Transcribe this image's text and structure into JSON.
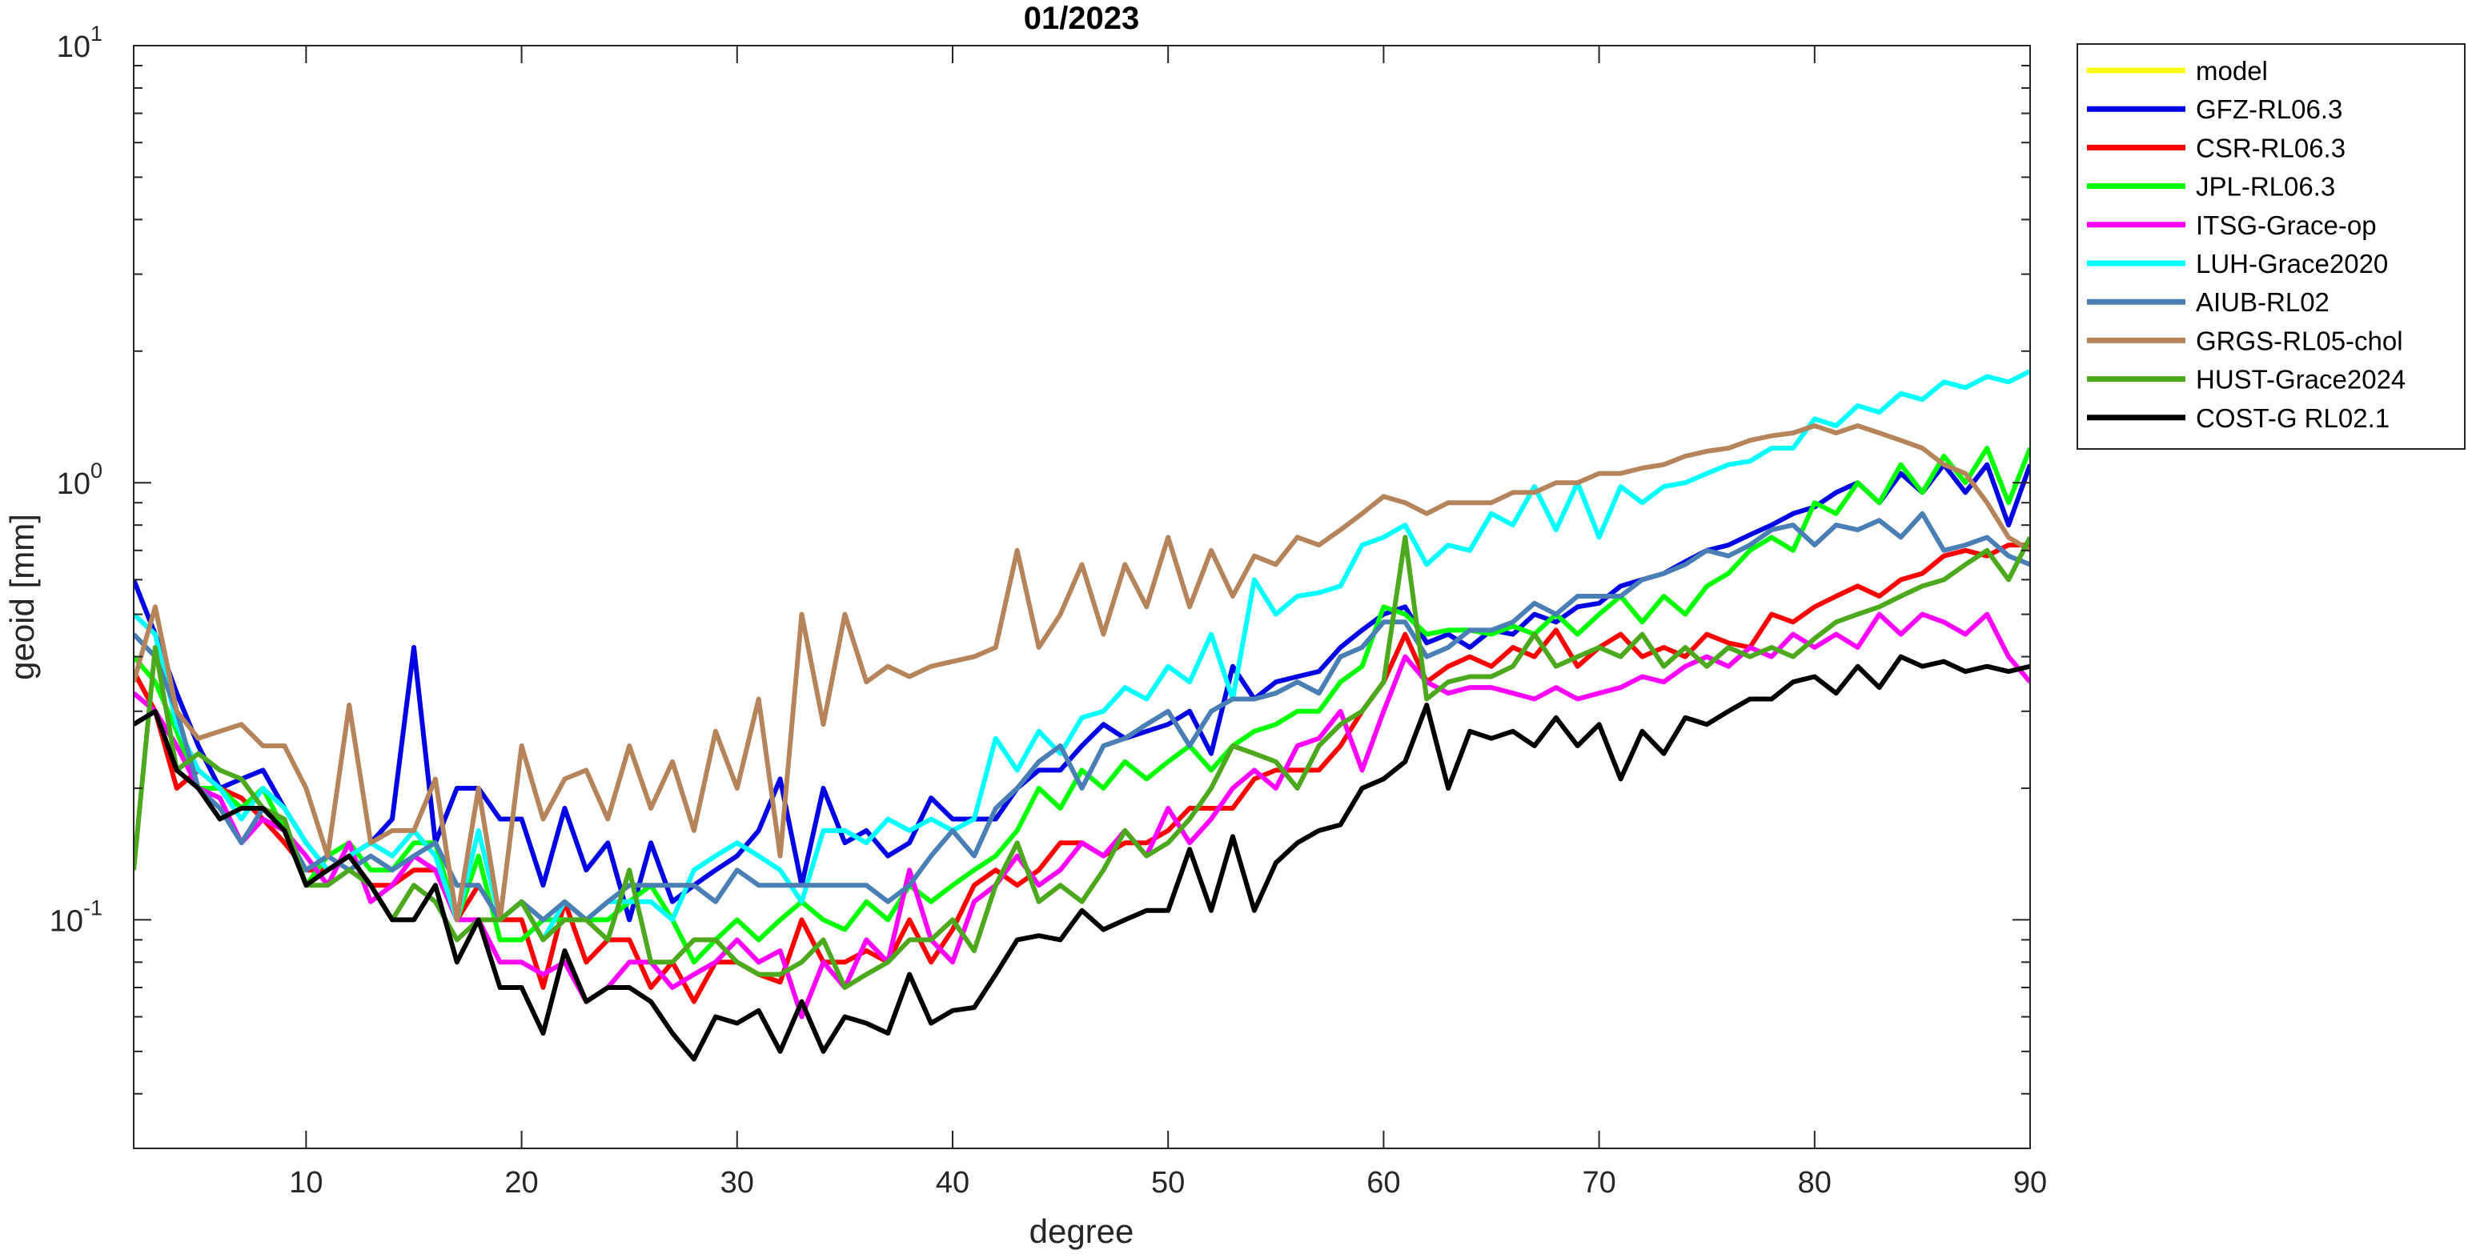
{
  "chart_data": {
    "type": "line",
    "title": "01/2023",
    "xlabel": "degree",
    "ylabel": "geoid [mm]",
    "x": [
      2,
      3,
      4,
      5,
      6,
      7,
      8,
      9,
      10,
      11,
      12,
      13,
      14,
      15,
      16,
      17,
      18,
      19,
      20,
      21,
      22,
      23,
      24,
      25,
      26,
      27,
      28,
      29,
      30,
      31,
      32,
      33,
      34,
      35,
      36,
      37,
      38,
      39,
      40,
      41,
      42,
      43,
      44,
      45,
      46,
      47,
      48,
      49,
      50,
      51,
      52,
      53,
      54,
      55,
      56,
      57,
      58,
      59,
      60,
      61,
      62,
      63,
      64,
      65,
      66,
      67,
      68,
      69,
      70,
      71,
      72,
      73,
      74,
      75,
      76,
      77,
      78,
      79,
      80,
      81,
      82,
      83,
      84,
      85,
      86,
      87,
      88,
      89,
      90
    ],
    "xlim": [
      2,
      90
    ],
    "xticks": [
      10,
      20,
      30,
      40,
      50,
      60,
      70,
      80,
      90
    ],
    "ylim": [
      0.03,
      10
    ],
    "log_y": true,
    "yticks": [
      {
        "value": 0.1,
        "label": "10",
        "exponent": "-1"
      },
      {
        "value": 1,
        "label": "10",
        "exponent": "0"
      },
      {
        "value": 10,
        "label": "10",
        "exponent": "1"
      }
    ],
    "yminorticks": [
      0.03,
      0.04,
      0.05,
      0.06,
      0.07,
      0.08,
      0.09,
      0.2,
      0.3,
      0.4,
      0.5,
      0.6,
      0.7,
      0.8,
      0.9,
      2,
      3,
      4,
      5,
      6,
      7,
      8,
      9
    ],
    "grid": false,
    "legend": "outside-right",
    "series": [
      {
        "name": "model",
        "color": "#ffff00",
        "values": [
          null,
          null,
          null,
          null,
          null,
          null,
          null,
          null,
          null,
          null,
          null,
          null,
          null,
          null,
          null,
          null,
          null,
          null,
          null,
          null,
          null,
          null,
          null,
          null,
          null,
          null,
          null,
          null,
          null,
          null,
          null,
          null,
          null,
          null,
          null,
          null,
          null,
          null,
          null,
          null,
          null,
          null,
          null,
          null,
          null,
          null,
          null,
          null,
          null,
          null,
          null,
          null,
          null,
          null,
          null,
          null,
          null,
          null,
          null,
          null,
          null,
          null,
          null,
          null,
          null,
          null,
          null,
          null,
          null,
          null,
          null,
          null,
          null,
          null,
          null,
          null,
          null,
          null,
          null,
          null,
          null,
          null,
          null,
          null,
          null,
          null,
          null,
          null,
          null
        ]
      },
      {
        "name": "GFZ-RL06.3",
        "color": "#0000e6",
        "values": [
          0.6,
          0.45,
          0.33,
          0.25,
          0.2,
          0.21,
          0.22,
          0.18,
          0.15,
          0.13,
          0.14,
          0.15,
          0.17,
          0.42,
          0.15,
          0.2,
          0.2,
          0.17,
          0.17,
          0.12,
          0.18,
          0.13,
          0.15,
          0.1,
          0.15,
          0.11,
          0.12,
          0.13,
          0.14,
          0.16,
          0.21,
          0.12,
          0.2,
          0.15,
          0.16,
          0.14,
          0.15,
          0.19,
          0.17,
          0.17,
          0.17,
          0.2,
          0.22,
          0.22,
          0.25,
          0.28,
          0.26,
          0.27,
          0.28,
          0.3,
          0.24,
          0.38,
          0.32,
          0.35,
          0.36,
          0.37,
          0.42,
          0.46,
          0.5,
          0.52,
          0.43,
          0.45,
          0.42,
          0.46,
          0.45,
          0.5,
          0.48,
          0.52,
          0.53,
          0.58,
          0.6,
          0.62,
          0.66,
          0.7,
          0.72,
          0.76,
          0.8,
          0.85,
          0.88,
          0.95,
          1.0,
          0.9,
          1.05,
          0.95,
          1.1,
          0.95,
          1.1,
          0.8,
          1.1
        ]
      },
      {
        "name": "CSR-RL06.3",
        "color": "#ff0000",
        "values": [
          0.37,
          0.3,
          0.2,
          0.22,
          0.2,
          0.19,
          0.17,
          0.15,
          0.13,
          0.13,
          0.14,
          0.12,
          0.12,
          0.13,
          0.13,
          0.1,
          0.12,
          0.1,
          0.1,
          0.07,
          0.11,
          0.08,
          0.09,
          0.09,
          0.07,
          0.08,
          0.065,
          0.08,
          0.08,
          0.075,
          0.072,
          0.1,
          0.08,
          0.08,
          0.085,
          0.08,
          0.1,
          0.08,
          0.095,
          0.12,
          0.13,
          0.12,
          0.13,
          0.15,
          0.15,
          0.14,
          0.15,
          0.15,
          0.16,
          0.18,
          0.18,
          0.18,
          0.21,
          0.22,
          0.22,
          0.22,
          0.25,
          0.3,
          0.35,
          0.45,
          0.35,
          0.38,
          0.4,
          0.38,
          0.42,
          0.4,
          0.46,
          0.38,
          0.42,
          0.45,
          0.4,
          0.42,
          0.4,
          0.45,
          0.43,
          0.42,
          0.5,
          0.48,
          0.52,
          0.55,
          0.58,
          0.55,
          0.6,
          0.62,
          0.68,
          0.7,
          0.68,
          0.72,
          0.72
        ]
      },
      {
        "name": "JPL-RL06.3",
        "color": "#00ff00",
        "values": [
          0.4,
          0.35,
          0.27,
          0.2,
          0.2,
          0.18,
          0.2,
          0.16,
          0.12,
          0.14,
          0.15,
          0.13,
          0.13,
          0.15,
          0.15,
          0.1,
          0.14,
          0.09,
          0.09,
          0.1,
          0.1,
          0.1,
          0.1,
          0.11,
          0.12,
          0.1,
          0.08,
          0.09,
          0.1,
          0.09,
          0.1,
          0.11,
          0.1,
          0.095,
          0.11,
          0.1,
          0.12,
          0.11,
          0.12,
          0.13,
          0.14,
          0.16,
          0.2,
          0.18,
          0.22,
          0.2,
          0.23,
          0.21,
          0.23,
          0.25,
          0.22,
          0.25,
          0.27,
          0.28,
          0.3,
          0.3,
          0.35,
          0.38,
          0.52,
          0.5,
          0.45,
          0.46,
          0.46,
          0.45,
          0.47,
          0.45,
          0.5,
          0.45,
          0.5,
          0.55,
          0.48,
          0.55,
          0.5,
          0.58,
          0.62,
          0.7,
          0.75,
          0.7,
          0.9,
          0.85,
          1.0,
          0.9,
          1.1,
          0.95,
          1.15,
          1.0,
          1.2,
          0.9,
          1.2
        ]
      },
      {
        "name": "ITSG-Grace-op",
        "color": "#ff00ff",
        "values": [
          0.33,
          0.3,
          0.25,
          0.2,
          0.19,
          0.15,
          0.17,
          0.16,
          0.14,
          0.12,
          0.15,
          0.11,
          0.12,
          0.14,
          0.13,
          0.1,
          0.1,
          0.08,
          0.08,
          0.075,
          0.08,
          0.065,
          0.07,
          0.08,
          0.08,
          0.07,
          0.075,
          0.08,
          0.09,
          0.08,
          0.085,
          0.06,
          0.08,
          0.07,
          0.09,
          0.08,
          0.13,
          0.09,
          0.08,
          0.11,
          0.12,
          0.14,
          0.12,
          0.13,
          0.15,
          0.14,
          0.16,
          0.14,
          0.18,
          0.15,
          0.17,
          0.2,
          0.22,
          0.2,
          0.25,
          0.26,
          0.3,
          0.22,
          0.3,
          0.4,
          0.35,
          0.33,
          0.34,
          0.34,
          0.33,
          0.32,
          0.34,
          0.32,
          0.33,
          0.34,
          0.36,
          0.35,
          0.38,
          0.4,
          0.38,
          0.42,
          0.4,
          0.45,
          0.42,
          0.45,
          0.42,
          0.5,
          0.45,
          0.5,
          0.48,
          0.45,
          0.5,
          0.4,
          0.35
        ]
      },
      {
        "name": "LUH-Grace2020",
        "color": "#00ffff",
        "values": [
          0.5,
          0.45,
          0.28,
          0.22,
          0.2,
          0.17,
          0.2,
          0.18,
          0.15,
          0.13,
          0.14,
          0.15,
          0.14,
          0.16,
          0.14,
          0.1,
          0.16,
          0.1,
          0.11,
          0.09,
          0.11,
          0.1,
          0.11,
          0.11,
          0.11,
          0.1,
          0.13,
          0.14,
          0.15,
          0.14,
          0.13,
          0.11,
          0.16,
          0.16,
          0.15,
          0.17,
          0.16,
          0.17,
          0.16,
          0.17,
          0.26,
          0.22,
          0.27,
          0.24,
          0.29,
          0.3,
          0.34,
          0.32,
          0.38,
          0.35,
          0.45,
          0.32,
          0.6,
          0.5,
          0.55,
          0.56,
          0.58,
          0.72,
          0.75,
          0.8,
          0.65,
          0.72,
          0.7,
          0.85,
          0.8,
          0.98,
          0.78,
          1.0,
          0.75,
          0.98,
          0.9,
          0.98,
          1.0,
          1.05,
          1.1,
          1.12,
          1.2,
          1.2,
          1.4,
          1.35,
          1.5,
          1.45,
          1.6,
          1.55,
          1.7,
          1.65,
          1.75,
          1.7,
          1.8
        ]
      },
      {
        "name": "AIUB-RL02",
        "color": "#4a7fb5",
        "values": [
          0.45,
          0.4,
          0.3,
          0.2,
          0.18,
          0.15,
          0.18,
          0.16,
          0.13,
          0.14,
          0.13,
          0.14,
          0.13,
          0.14,
          0.15,
          0.12,
          0.12,
          0.1,
          0.11,
          0.1,
          0.11,
          0.1,
          0.11,
          0.12,
          0.12,
          0.12,
          0.12,
          0.11,
          0.13,
          0.12,
          0.12,
          0.12,
          0.12,
          0.12,
          0.12,
          0.11,
          0.12,
          0.14,
          0.16,
          0.14,
          0.18,
          0.2,
          0.23,
          0.25,
          0.2,
          0.25,
          0.26,
          0.28,
          0.3,
          0.25,
          0.3,
          0.32,
          0.32,
          0.33,
          0.35,
          0.33,
          0.4,
          0.42,
          0.48,
          0.48,
          0.4,
          0.42,
          0.46,
          0.46,
          0.48,
          0.53,
          0.5,
          0.55,
          0.55,
          0.55,
          0.6,
          0.62,
          0.65,
          0.7,
          0.68,
          0.72,
          0.78,
          0.8,
          0.72,
          0.8,
          0.78,
          0.82,
          0.75,
          0.85,
          0.7,
          0.72,
          0.75,
          0.68,
          0.65
        ]
      },
      {
        "name": "GRGS-RL05-chol",
        "color": "#b5845a",
        "values": [
          0.35,
          0.52,
          0.3,
          0.26,
          0.27,
          0.28,
          0.25,
          0.25,
          0.2,
          0.14,
          0.31,
          0.15,
          0.16,
          0.16,
          0.21,
          0.1,
          0.2,
          0.1,
          0.25,
          0.17,
          0.21,
          0.22,
          0.17,
          0.25,
          0.18,
          0.23,
          0.16,
          0.27,
          0.2,
          0.32,
          0.14,
          0.5,
          0.28,
          0.5,
          0.35,
          0.38,
          0.36,
          0.38,
          0.39,
          0.4,
          0.42,
          0.7,
          0.42,
          0.5,
          0.65,
          0.45,
          0.65,
          0.52,
          0.75,
          0.52,
          0.7,
          0.55,
          0.68,
          0.65,
          0.75,
          0.72,
          0.78,
          0.85,
          0.93,
          0.9,
          0.85,
          0.9,
          0.9,
          0.9,
          0.95,
          0.95,
          1.0,
          1.0,
          1.05,
          1.05,
          1.08,
          1.1,
          1.15,
          1.18,
          1.2,
          1.25,
          1.28,
          1.3,
          1.35,
          1.3,
          1.35,
          1.3,
          1.25,
          1.2,
          1.1,
          1.05,
          0.9,
          0.75,
          0.7
        ]
      },
      {
        "name": "HUST-Grace2024",
        "color": "#4ca81c",
        "values": [
          0.13,
          0.42,
          0.22,
          0.24,
          0.22,
          0.21,
          0.18,
          0.17,
          0.12,
          0.12,
          0.13,
          0.12,
          0.1,
          0.12,
          0.11,
          0.09,
          0.1,
          0.1,
          0.11,
          0.09,
          0.1,
          0.1,
          0.09,
          0.13,
          0.08,
          0.08,
          0.09,
          0.09,
          0.08,
          0.075,
          0.075,
          0.08,
          0.09,
          0.07,
          0.075,
          0.08,
          0.09,
          0.09,
          0.1,
          0.085,
          0.12,
          0.15,
          0.11,
          0.12,
          0.11,
          0.13,
          0.16,
          0.14,
          0.15,
          0.17,
          0.2,
          0.25,
          0.24,
          0.23,
          0.2,
          0.25,
          0.28,
          0.3,
          0.35,
          0.75,
          0.32,
          0.35,
          0.36,
          0.36,
          0.38,
          0.45,
          0.38,
          0.4,
          0.42,
          0.4,
          0.45,
          0.38,
          0.42,
          0.38,
          0.42,
          0.4,
          0.42,
          0.4,
          0.44,
          0.48,
          0.5,
          0.52,
          0.55,
          0.58,
          0.6,
          0.65,
          0.7,
          0.6,
          0.75
        ]
      },
      {
        "name": "COST-G RL02.1",
        "color": "#000000",
        "values": [
          0.28,
          0.3,
          0.22,
          0.2,
          0.17,
          0.18,
          0.18,
          0.16,
          0.12,
          0.13,
          0.14,
          0.12,
          0.1,
          0.1,
          0.12,
          0.08,
          0.1,
          0.07,
          0.07,
          0.055,
          0.085,
          0.065,
          0.07,
          0.07,
          0.065,
          0.055,
          0.048,
          0.06,
          0.058,
          0.062,
          0.05,
          0.065,
          0.05,
          0.06,
          0.058,
          0.055,
          0.075,
          0.058,
          0.062,
          0.063,
          0.075,
          0.09,
          0.092,
          0.09,
          0.105,
          0.095,
          0.1,
          0.105,
          0.105,
          0.145,
          0.105,
          0.155,
          0.105,
          0.135,
          0.15,
          0.16,
          0.165,
          0.2,
          0.21,
          0.23,
          0.31,
          0.2,
          0.27,
          0.26,
          0.27,
          0.25,
          0.29,
          0.25,
          0.28,
          0.21,
          0.27,
          0.24,
          0.29,
          0.28,
          0.3,
          0.32,
          0.32,
          0.35,
          0.36,
          0.33,
          0.38,
          0.34,
          0.4,
          0.38,
          0.39,
          0.37,
          0.38,
          0.37,
          0.38
        ]
      }
    ]
  }
}
